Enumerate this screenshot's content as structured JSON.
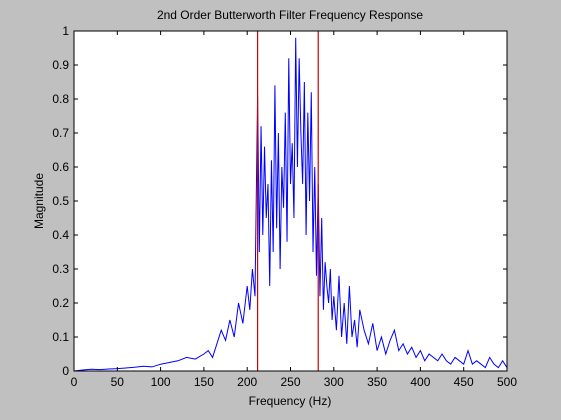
{
  "chart_data": {
    "type": "line",
    "title": "2nd Order Butterworth Filter Frequency Response",
    "xlabel": "Frequency (Hz)",
    "ylabel": "Magnitude",
    "xlim": [
      0,
      500
    ],
    "ylim": [
      0,
      1
    ],
    "xticks": [
      0,
      50,
      100,
      150,
      200,
      250,
      300,
      350,
      400,
      450,
      500
    ],
    "yticks": [
      0,
      0.1,
      0.2,
      0.3,
      0.4,
      0.5,
      0.6,
      0.7,
      0.8,
      0.9,
      1
    ],
    "ytick_labels": [
      "0",
      "0.1",
      "0.2",
      "0.3",
      "0.4",
      "0.5",
      "0.6",
      "0.7",
      "0.8",
      "0.9",
      "1"
    ],
    "grid": false,
    "legend": "none",
    "series": [
      {
        "color": "#0000ff",
        "x": [
          0,
          10,
          20,
          30,
          40,
          50,
          60,
          70,
          80,
          90,
          100,
          110,
          120,
          130,
          140,
          150,
          155,
          160,
          165,
          170,
          175,
          180,
          185,
          190,
          195,
          200,
          203,
          206,
          209,
          212,
          214,
          216,
          218,
          220,
          222,
          224,
          226,
          228,
          230,
          232,
          234,
          236,
          238,
          240,
          242,
          244,
          246,
          248,
          250,
          252,
          254,
          256,
          258,
          260,
          262,
          264,
          266,
          268,
          270,
          272,
          274,
          276,
          278,
          280,
          282,
          284,
          286,
          288,
          290,
          292,
          294,
          296,
          298,
          300,
          303,
          306,
          309,
          312,
          315,
          318,
          321,
          324,
          327,
          330,
          335,
          340,
          345,
          350,
          355,
          360,
          365,
          370,
          375,
          380,
          385,
          390,
          395,
          400,
          405,
          410,
          415,
          420,
          425,
          430,
          435,
          440,
          445,
          450,
          455,
          460,
          465,
          470,
          475,
          480,
          485,
          490,
          495,
          500
        ],
        "y": [
          0,
          0.003,
          0.005,
          0.004,
          0.006,
          0.007,
          0.009,
          0.011,
          0.014,
          0.012,
          0.02,
          0.025,
          0.03,
          0.04,
          0.035,
          0.05,
          0.06,
          0.04,
          0.08,
          0.12,
          0.09,
          0.15,
          0.1,
          0.2,
          0.14,
          0.25,
          0.18,
          0.3,
          0.22,
          0.81,
          0.35,
          0.72,
          0.4,
          0.66,
          0.45,
          0.55,
          0.25,
          0.62,
          0.35,
          0.84,
          0.42,
          0.7,
          0.3,
          0.6,
          0.48,
          0.76,
          0.38,
          0.92,
          0.55,
          0.67,
          0.45,
          0.98,
          0.6,
          0.92,
          0.7,
          0.55,
          0.85,
          0.4,
          0.76,
          0.5,
          0.82,
          0.35,
          0.6,
          0.28,
          0.55,
          0.22,
          0.45,
          0.18,
          0.32,
          0.25,
          0.2,
          0.3,
          0.15,
          0.22,
          0.12,
          0.28,
          0.1,
          0.2,
          0.08,
          0.25,
          0.1,
          0.15,
          0.07,
          0.18,
          0.12,
          0.08,
          0.14,
          0.06,
          0.1,
          0.05,
          0.09,
          0.12,
          0.06,
          0.08,
          0.05,
          0.07,
          0.04,
          0.06,
          0.03,
          0.05,
          0.04,
          0.03,
          0.05,
          0.03,
          0.02,
          0.04,
          0.03,
          0.02,
          0.06,
          0.02,
          0.03,
          0.02,
          0.01,
          0.04,
          0.02,
          0.01,
          0.03,
          0.01
        ]
      }
    ],
    "vertical_lines": [
      {
        "x": 212,
        "color": "#cc0000"
      },
      {
        "x": 282,
        "color": "#cc0000"
      }
    ]
  }
}
